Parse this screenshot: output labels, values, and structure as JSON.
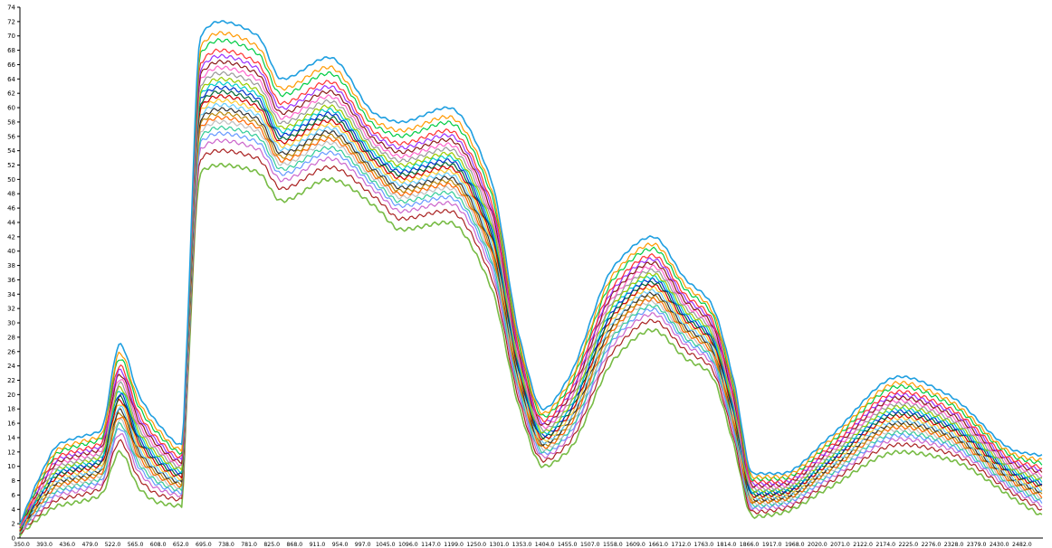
{
  "chart_data": {
    "type": "line",
    "title": "",
    "xlabel": "",
    "ylabel": "",
    "ylim": [
      0,
      74
    ],
    "xlim": [
      350,
      2500
    ],
    "grid": false,
    "legend": "none",
    "y_ticks": [
      0,
      2,
      4,
      6,
      8,
      10,
      12,
      14,
      16,
      18,
      20,
      22,
      24,
      26,
      28,
      30,
      32,
      34,
      36,
      38,
      40,
      42,
      44,
      46,
      48,
      50,
      52,
      54,
      56,
      58,
      60,
      62,
      64,
      66,
      68,
      70,
      72,
      74
    ],
    "x_tick_labels": [
      "350.0",
      "393.0",
      "436.0",
      "479.0",
      "522.0",
      "565.0",
      "608.0",
      "652.0",
      "695.0",
      "738.0",
      "781.0",
      "825.0",
      "868.0",
      "911.0",
      "954.0",
      "997.0",
      "1045.0",
      "1096.0",
      "1147.0",
      "1199.0",
      "1250.0",
      "1301.0",
      "1353.0",
      "1404.0",
      "1455.0",
      "1507.0",
      "1558.0",
      "1609.0",
      "1661.0",
      "1712.0",
      "1763.0",
      "1814.0",
      "1866.0",
      "1917.0",
      "1968.0",
      "2020.0",
      "2071.0",
      "2122.0",
      "2174.0",
      "2225.0",
      "2276.0",
      "2328.0",
      "2379.0",
      "2430.0",
      "2482.0"
    ],
    "reference_x": [
      350,
      395,
      430,
      470,
      520,
      560,
      600,
      640,
      690,
      700,
      730,
      770,
      850,
      900,
      1000,
      1100,
      1150,
      1250,
      1340,
      1400,
      1450,
      1500,
      1600,
      1680,
      1750,
      1800,
      1850,
      1890,
      1950,
      2050,
      2200,
      2300,
      2450,
      2500
    ],
    "envelope": {
      "upper": [
        2,
        9,
        13,
        14,
        15,
        27,
        20,
        16,
        13,
        26,
        70,
        72,
        70,
        64,
        67,
        59,
        58,
        60,
        50,
        28,
        18,
        22,
        38,
        42,
        36,
        33,
        22,
        9,
        9,
        14,
        22.5,
        20,
        12,
        11.5
      ],
      "lower": [
        0.5,
        3,
        4.5,
        5,
        6,
        12,
        7,
        5,
        4.5,
        18,
        51,
        52,
        51,
        47,
        50,
        46,
        43,
        44,
        35,
        18,
        10,
        12,
        25,
        29,
        25,
        23,
        13,
        3,
        3.5,
        7,
        12,
        11,
        5,
        3
      ]
    },
    "series_colors": [
      "#1f9fe0",
      "#ff9900",
      "#00cc44",
      "#ff3333",
      "#9933ff",
      "#8b1a1a",
      "#ff66cc",
      "#999999",
      "#99cc00",
      "#00cccc",
      "#0033cc",
      "#006633",
      "#cc0000",
      "#ffcc33",
      "#66ccff",
      "#333333",
      "#b8860b",
      "#ff6600",
      "#c0c0c0",
      "#33cc99",
      "#6699ff",
      "#cc66cc",
      "#aa2222",
      "#77bb44"
    ],
    "series_positions": [
      1.0,
      0.92,
      0.87,
      0.8,
      0.76,
      0.72,
      0.68,
      0.64,
      0.6,
      0.57,
      0.54,
      0.51,
      0.48,
      0.45,
      0.42,
      0.39,
      0.36,
      0.33,
      0.3,
      0.26,
      0.22,
      0.17,
      0.1,
      0.0
    ]
  }
}
